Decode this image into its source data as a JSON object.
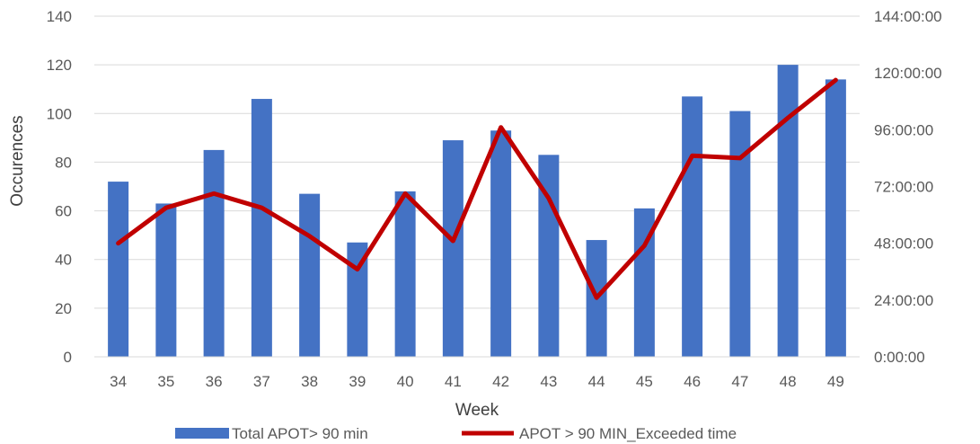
{
  "chart_data": {
    "type": "bar",
    "xlabel": "Week",
    "ylabel": "Occurences",
    "categories": [
      "34",
      "35",
      "36",
      "37",
      "38",
      "39",
      "40",
      "41",
      "42",
      "43",
      "44",
      "45",
      "46",
      "47",
      "48",
      "49"
    ],
    "ylim": [
      0,
      140
    ],
    "yticks": [
      "0",
      "20",
      "40",
      "60",
      "80",
      "100",
      "120",
      "140"
    ],
    "y2lim_hours": [
      0,
      144
    ],
    "y2ticks": [
      "0:00:00",
      "24:00:00",
      "48:00:00",
      "72:00:00",
      "96:00:00",
      "120:00:00",
      "144:00:00"
    ],
    "grid": true,
    "legend_position": "bottom",
    "series": [
      {
        "name": "Total APOT> 90 min",
        "type": "bar",
        "axis": "left",
        "color": "#4472C4",
        "values": [
          72,
          63,
          85,
          106,
          67,
          47,
          68,
          89,
          93,
          83,
          48,
          61,
          107,
          101,
          120,
          114
        ]
      },
      {
        "name": "APOT > 90 MIN_Exceeded time",
        "type": "line",
        "axis": "right",
        "unit": "h:mm:ss",
        "color": "#C00000",
        "values": [
          "48:00:00",
          "63:00:00",
          "69:00:00",
          "63:00:00",
          "51:00:00",
          "37:00:00",
          "69:00:00",
          "49:00:00",
          "97:00:00",
          "67:00:00",
          "25:00:00",
          "47:00:00",
          "85:00:00",
          "84:00:00",
          "101:00:00",
          "117:00:00"
        ]
      }
    ]
  }
}
